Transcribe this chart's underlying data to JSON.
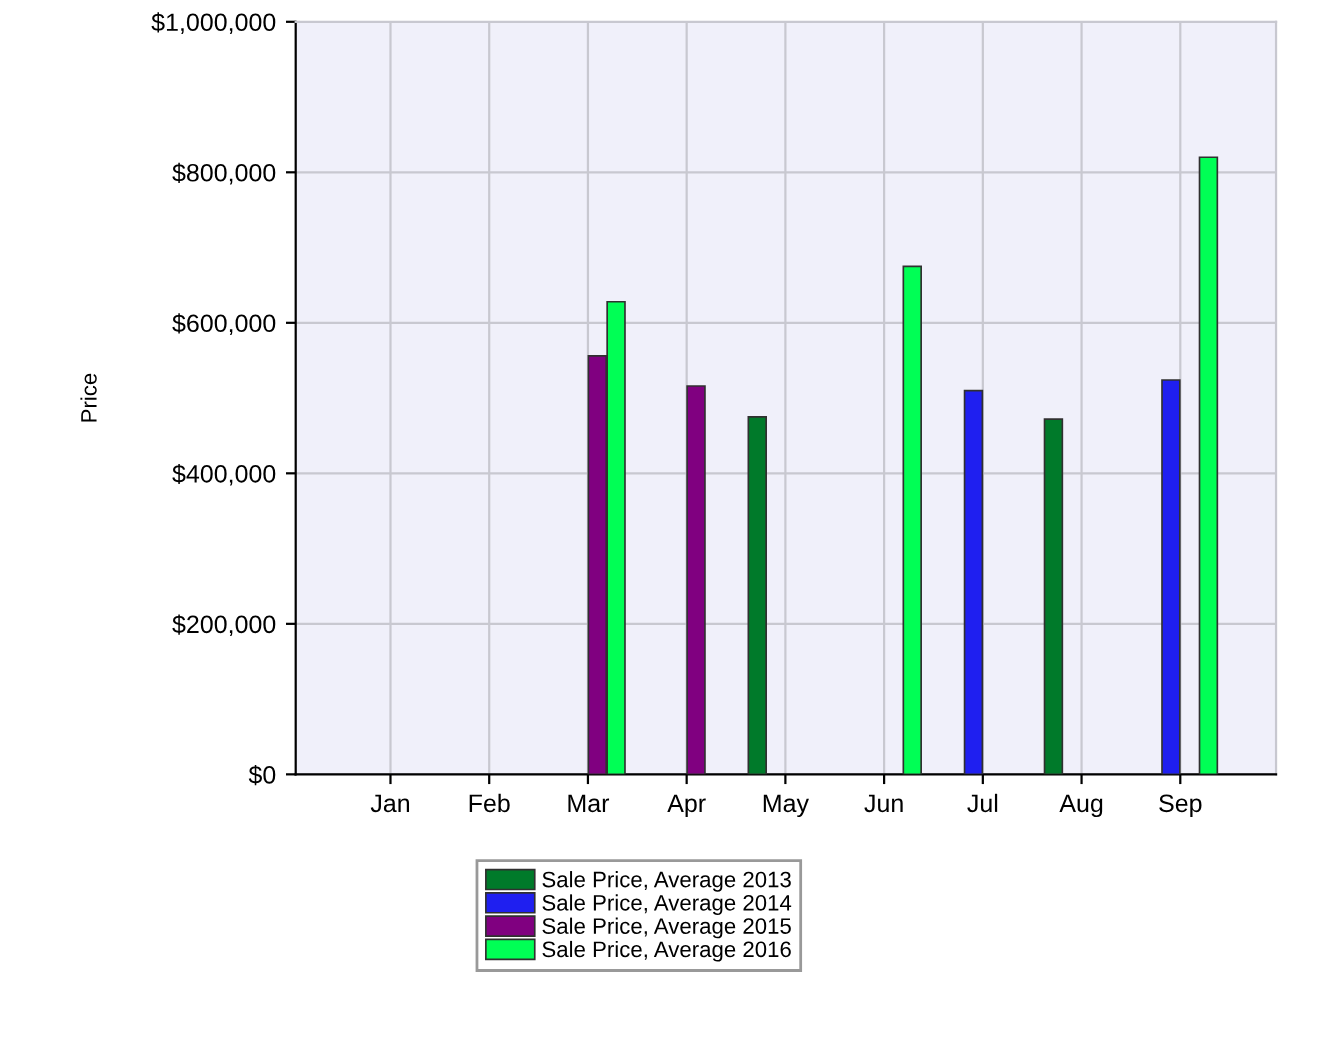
{
  "chart_data": {
    "type": "bar",
    "ylabel": "Price",
    "categories": [
      "Jan",
      "Feb",
      "Mar",
      "Apr",
      "May",
      "Jun",
      "Jul",
      "Aug",
      "Sep"
    ],
    "ylim": [
      0,
      1000000
    ],
    "yticks": [
      {
        "value": 0,
        "label": "$0"
      },
      {
        "value": 200000,
        "label": "$200,000"
      },
      {
        "value": 400000,
        "label": "$400,000"
      },
      {
        "value": 600000,
        "label": "$600,000"
      },
      {
        "value": 800000,
        "label": "$800,000"
      },
      {
        "value": 1000000,
        "label": "$1,000,000"
      }
    ],
    "grid": true,
    "legend": "bottom",
    "series": [
      {
        "name": "Sale Price, Average 2013",
        "color": "#007a2a",
        "values": [
          null,
          null,
          null,
          null,
          475000,
          null,
          null,
          472000,
          null
        ]
      },
      {
        "name": "Sale Price, Average 2014",
        "color": "#1f1ff0",
        "values": [
          null,
          null,
          null,
          null,
          null,
          null,
          510000,
          null,
          524000
        ]
      },
      {
        "name": "Sale Price, Average 2015",
        "color": "#800080",
        "values": [
          null,
          null,
          556000,
          516000,
          null,
          null,
          null,
          null,
          null
        ]
      },
      {
        "name": "Sale Price, Average 2016",
        "color": "#00ff55",
        "values": [
          null,
          null,
          628000,
          null,
          null,
          675000,
          null,
          null,
          820000
        ]
      }
    ]
  }
}
